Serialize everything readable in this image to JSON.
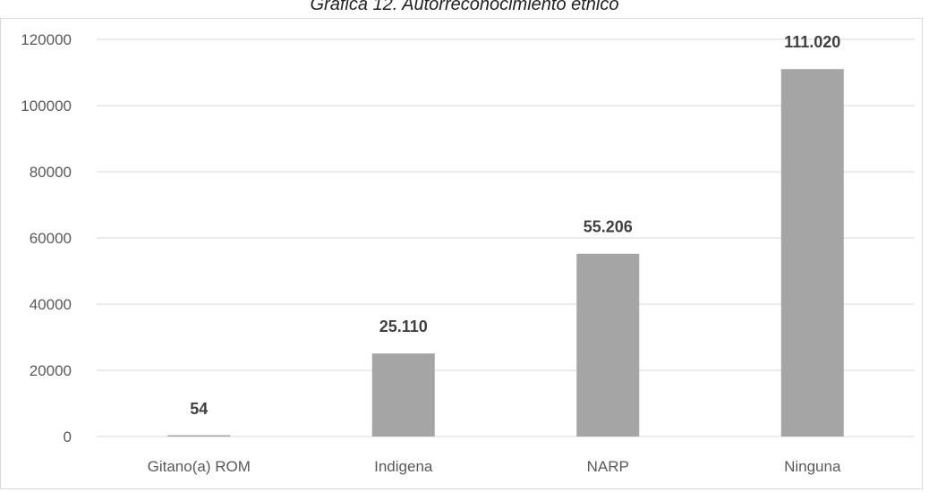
{
  "title": "Gráfica 12. Autorreconocimiento étnico",
  "chart_data": {
    "type": "bar",
    "categories": [
      "Gitano(a) ROM",
      "Indigena",
      "NARP",
      "Ninguna"
    ],
    "values": [
      54,
      25110,
      55206,
      111020
    ],
    "data_labels": [
      "54",
      "25.110",
      "55.206",
      "111.020"
    ],
    "y_ticks": [
      0,
      20000,
      40000,
      60000,
      80000,
      100000,
      120000
    ],
    "ylim": [
      0,
      120000
    ],
    "grid": true,
    "bar_color": "#a5a5a5",
    "grid_color": "#d9d9d9"
  }
}
